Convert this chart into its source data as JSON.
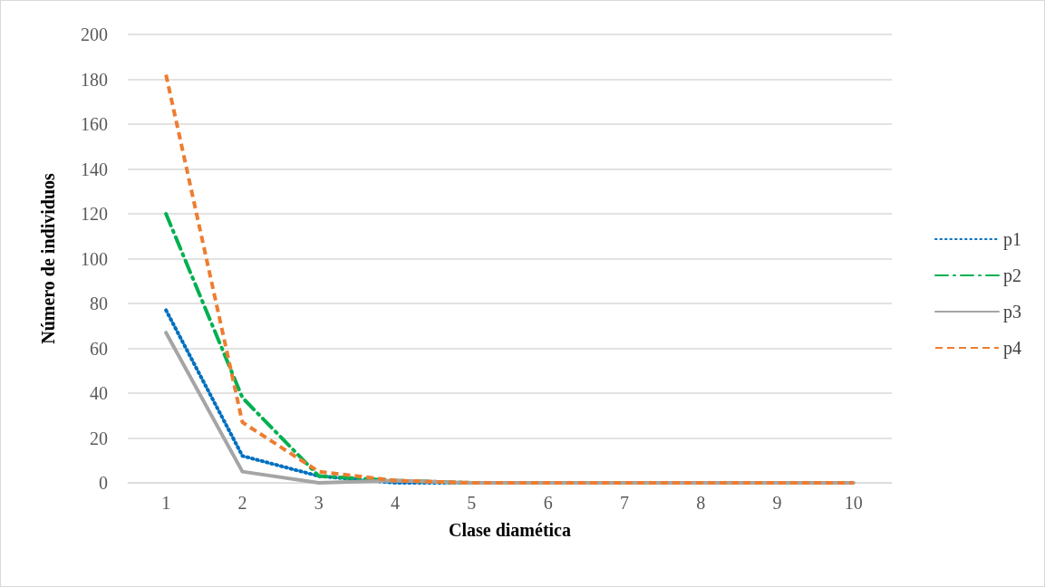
{
  "chart_data": {
    "type": "line",
    "xlabel": "Clase diamética",
    "ylabel": "Número de individuos",
    "categories": [
      "1",
      "2",
      "3",
      "4",
      "5",
      "6",
      "7",
      "8",
      "9",
      "10"
    ],
    "series": [
      {
        "name": "p1",
        "color": "#0070c0",
        "line_style": "dotted",
        "values": [
          77,
          12,
          3,
          0,
          0,
          0,
          null,
          null,
          null,
          null
        ]
      },
      {
        "name": "p2",
        "color": "#00b050",
        "line_style": "dashdot",
        "values": [
          120,
          38,
          3,
          1,
          0,
          0,
          null,
          null,
          null,
          null
        ]
      },
      {
        "name": "p3",
        "color": "#a5a5a5",
        "line_style": "solid",
        "values": [
          67,
          5,
          0,
          1,
          0,
          0,
          0,
          0,
          0,
          0
        ]
      },
      {
        "name": "p4",
        "color": "#ed7d31",
        "line_style": "dashed",
        "values": [
          182,
          27,
          5,
          1,
          0,
          0,
          0,
          0,
          0,
          0
        ]
      }
    ],
    "ylim": [
      0,
      200
    ],
    "yticks": [
      0,
      20,
      40,
      60,
      80,
      100,
      120,
      140,
      160,
      180,
      200
    ],
    "grid": "y",
    "legend": "right",
    "marker": "none"
  }
}
